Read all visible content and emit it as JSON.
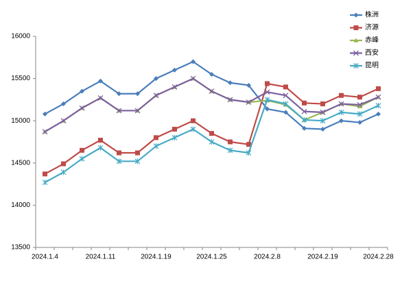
{
  "chart_data": {
    "type": "line",
    "categories": [
      "2024.1.4",
      null,
      null,
      "2024.1.11",
      null,
      null,
      "2024.1.19",
      null,
      null,
      "2024.1.25",
      null,
      null,
      "2024.2.8",
      null,
      null,
      "2024.2.19",
      null,
      null,
      "2024.2.28"
    ],
    "series": [
      {
        "name": "株洲",
        "color": "#4a7ebb",
        "marker": "diamond",
        "values": [
          15080,
          15200,
          15350,
          15470,
          15320,
          15320,
          15500,
          15600,
          15700,
          15550,
          15450,
          15420,
          15140,
          15100,
          14910,
          14900,
          15000,
          14980,
          15080
        ]
      },
      {
        "name": "济源",
        "color": "#be4b48",
        "marker": "square",
        "values": [
          14370,
          14490,
          14650,
          14770,
          14620,
          14620,
          14800,
          14900,
          15000,
          14850,
          14750,
          14720,
          15440,
          15400,
          15210,
          15200,
          15300,
          15280,
          15380
        ]
      },
      {
        "name": "赤峰",
        "color": "#98b954",
        "marker": "triangle",
        "values": [
          14870,
          15000,
          15150,
          15270,
          15120,
          15120,
          15300,
          15400,
          15500,
          15350,
          15250,
          15220,
          15240,
          15190,
          15010,
          15100,
          15200,
          15170,
          15280
        ]
      },
      {
        "name": "西安",
        "color": "#7d60a0",
        "marker": "x",
        "values": [
          14870,
          15000,
          15150,
          15270,
          15120,
          15120,
          15300,
          15400,
          15500,
          15350,
          15250,
          15220,
          15340,
          15300,
          15110,
          15100,
          15200,
          15190,
          15280
        ]
      },
      {
        "name": "昆明",
        "color": "#46aac5",
        "marker": "star",
        "values": [
          14270,
          14390,
          14550,
          14680,
          14520,
          14520,
          14700,
          14800,
          14900,
          14750,
          14650,
          14620,
          15250,
          15200,
          15010,
          15000,
          15100,
          15080,
          15180
        ]
      }
    ],
    "ylim": [
      13500,
      16000
    ],
    "yticks": [
      13500,
      14000,
      14500,
      15000,
      15500,
      16000
    ],
    "grid": false,
    "legend": "top-right"
  }
}
